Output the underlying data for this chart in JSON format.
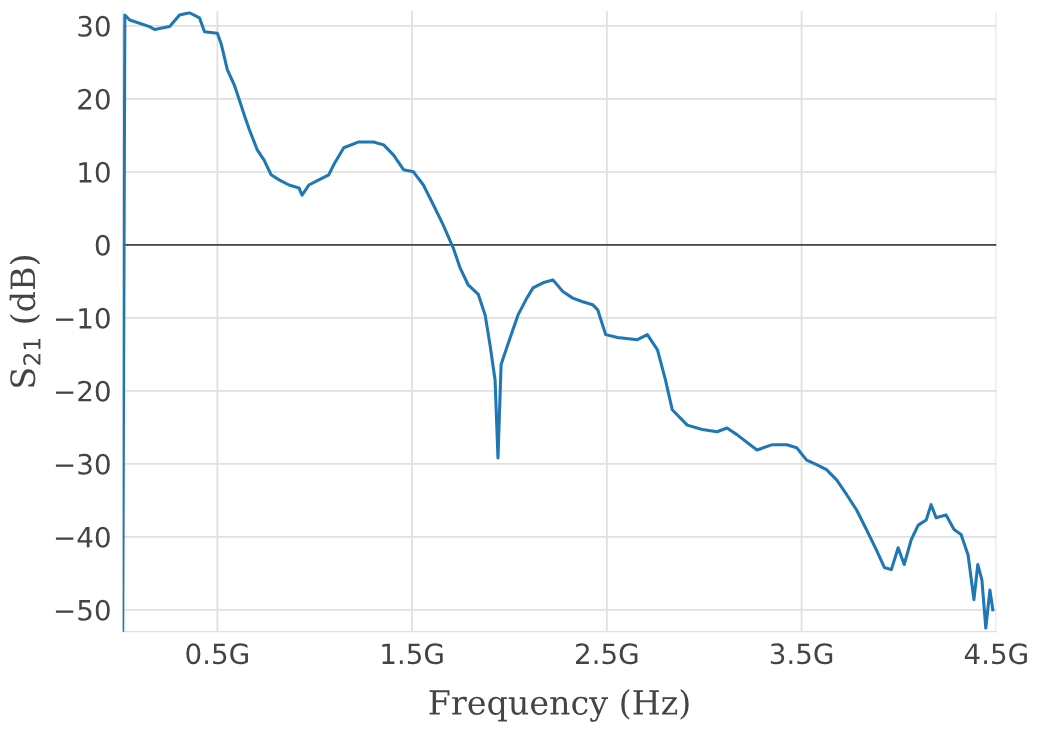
{
  "chart_data": {
    "type": "line",
    "xlabel": "Frequency (Hz)",
    "ylabel": "S$_{21}$ (dB)",
    "xlim": [
      0.014,
      4.5
    ],
    "ylim": [
      -53,
      32
    ],
    "xticks": [
      {
        "value": 0.5,
        "label": "0.5G"
      },
      {
        "value": 1.5,
        "label": "1.5G"
      },
      {
        "value": 2.5,
        "label": "2.5G"
      },
      {
        "value": 3.5,
        "label": "3.5G"
      },
      {
        "value": 4.5,
        "label": "4.5G"
      }
    ],
    "yticks": [
      {
        "value": -50,
        "label": "−50"
      },
      {
        "value": -40,
        "label": "−40"
      },
      {
        "value": -30,
        "label": "−30"
      },
      {
        "value": -20,
        "label": "−20"
      },
      {
        "value": -10,
        "label": "−10"
      },
      0,
      10,
      20,
      30
    ],
    "grid": true,
    "marker": "none",
    "line_style": "solid",
    "ref_lines": [
      {
        "axis": "y",
        "value": 0,
        "color": "#444444"
      }
    ],
    "series": [
      {
        "color": "#1f77b4",
        "x": [
          0.014,
          0.025,
          0.05,
          0.152,
          0.178,
          0.255,
          0.306,
          0.357,
          0.408,
          0.434,
          0.5,
          0.521,
          0.551,
          0.587,
          0.612,
          0.638,
          0.664,
          0.705,
          0.74,
          0.776,
          0.817,
          0.868,
          0.919,
          0.935,
          0.97,
          1.021,
          1.072,
          1.098,
          1.149,
          1.226,
          1.302,
          1.354,
          1.405,
          1.456,
          1.507,
          1.558,
          1.609,
          1.66,
          1.711,
          1.747,
          1.788,
          1.84,
          1.875,
          1.9,
          1.926,
          1.941,
          1.957,
          1.982,
          2.018,
          2.044,
          2.085,
          2.121,
          2.172,
          2.223,
          2.274,
          2.325,
          2.376,
          2.427,
          2.453,
          2.494,
          2.555,
          2.657,
          2.708,
          2.76,
          2.801,
          2.836,
          2.913,
          2.99,
          3.066,
          3.117,
          3.168,
          3.271,
          3.347,
          3.424,
          3.475,
          3.526,
          3.577,
          3.628,
          3.68,
          3.731,
          3.782,
          3.833,
          3.884,
          3.925,
          3.961,
          3.996,
          4.027,
          4.063,
          4.099,
          4.14,
          4.165,
          4.191,
          4.242,
          4.283,
          4.319,
          4.355,
          4.385,
          4.405,
          4.426,
          4.446,
          4.467,
          4.482
        ],
        "values": [
          -53,
          31.5,
          30.8,
          29.9,
          29.5,
          29.9,
          31.5,
          31.8,
          31.1,
          29.2,
          29.0,
          27.4,
          24.0,
          21.9,
          19.9,
          17.8,
          15.8,
          13.0,
          11.6,
          9.6,
          8.9,
          8.2,
          7.8,
          6.8,
          8.2,
          8.9,
          9.6,
          11.0,
          13.3,
          14.1,
          14.1,
          13.7,
          12.3,
          10.3,
          10.0,
          8.2,
          5.5,
          2.7,
          -0.4,
          -3.2,
          -5.5,
          -6.8,
          -9.6,
          -13.7,
          -18.5,
          -29.2,
          -16.4,
          -14.4,
          -11.6,
          -9.6,
          -7.5,
          -5.9,
          -5.2,
          -4.8,
          -6.4,
          -7.3,
          -7.8,
          -8.2,
          -8.9,
          -12.3,
          -12.7,
          -13.0,
          -12.3,
          -14.4,
          -18.5,
          -22.6,
          -24.7,
          -25.3,
          -25.6,
          -25.1,
          -26.0,
          -28.1,
          -27.4,
          -27.4,
          -27.8,
          -29.5,
          -30.1,
          -30.8,
          -32.2,
          -34.2,
          -36.3,
          -39.0,
          -41.8,
          -44.2,
          -44.5,
          -41.5,
          -43.8,
          -40.4,
          -38.4,
          -37.7,
          -35.6,
          -37.4,
          -37.0,
          -39.0,
          -39.7,
          -42.5,
          -48.6,
          -43.8,
          -45.9,
          -52.5,
          -47.3,
          -50.0
        ]
      }
    ]
  }
}
